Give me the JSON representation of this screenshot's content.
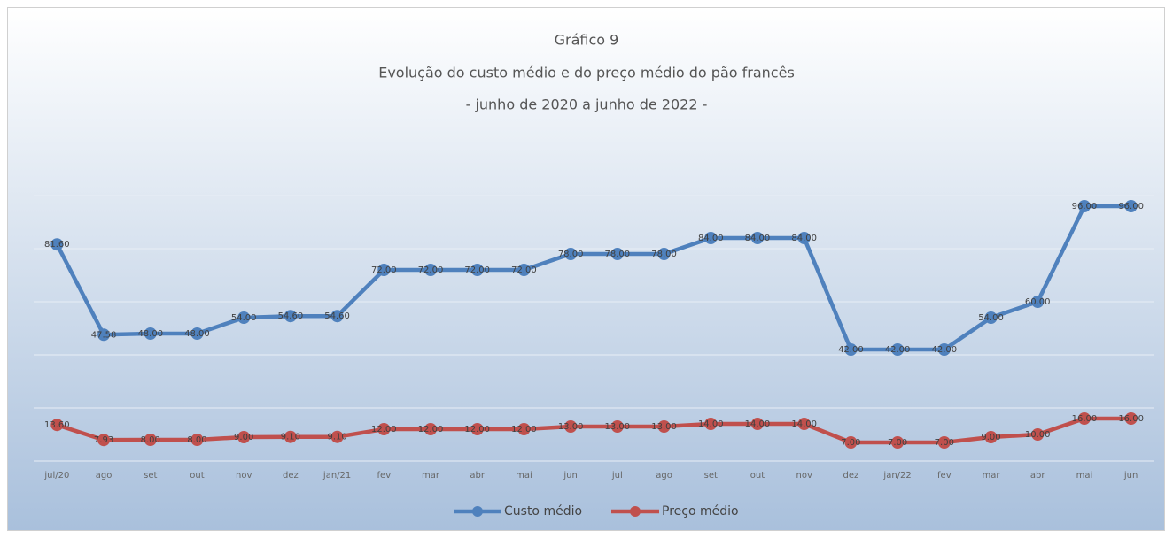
{
  "chart_data": {
    "type": "line",
    "title": [
      "Gráfico 9",
      "Evolução do custo médio e do preço médio do pão francês",
      "- junho de 2020 a junho de 2022 -"
    ],
    "categories": [
      "jul/20",
      "ago",
      "set",
      "out",
      "nov",
      "dez",
      "jan/21",
      "fev",
      "mar",
      "abr",
      "mai",
      "jun",
      "jul",
      "ago",
      "set",
      "out",
      "nov",
      "dez",
      "jan/22",
      "fev",
      "mar",
      "abr",
      "mai",
      "jun"
    ],
    "series": [
      {
        "name": "Custo médio",
        "color": "#4f81bd",
        "values": [
          81.6,
          47.58,
          48,
          48,
          54,
          54.6,
          54.6,
          72,
          72,
          72,
          72,
          78,
          78,
          78,
          84,
          84,
          84,
          42,
          42,
          42,
          54,
          60,
          96,
          96
        ],
        "value_labels": [
          "81.60",
          "47.58",
          "48.00",
          "48.00",
          "54.00",
          "54.60",
          "54.60",
          "72.00",
          "72.00",
          "72.00",
          "72.00",
          "78.00",
          "78.00",
          "78.00",
          "84.00",
          "84.00",
          "84.00",
          "42.00",
          "42.00",
          "42.00",
          "54.00",
          "60.00",
          "96.00",
          "96.00"
        ]
      },
      {
        "name": "Preço médio",
        "color": "#c0504d",
        "values": [
          13.6,
          7.93,
          8,
          8,
          9,
          9.1,
          9.1,
          12,
          12,
          12,
          12,
          13,
          13,
          13,
          14,
          14,
          14,
          7,
          7,
          7,
          9,
          10,
          16,
          16
        ],
        "value_labels": [
          "13.60",
          "7.93",
          "8.00",
          "8.00",
          "9.00",
          "9.10",
          "9.10",
          "12.00",
          "12.00",
          "12.00",
          "12.00",
          "13.00",
          "13.00",
          "13.00",
          "14.00",
          "14.00",
          "14.00",
          "7.00",
          "7.00",
          "7.00",
          "9.00",
          "10.00",
          "16.00",
          "16.00"
        ]
      }
    ],
    "ylim": [
      0,
      120
    ],
    "yticks": [
      0,
      20,
      40,
      60,
      80,
      100,
      120
    ],
    "grid": true,
    "legend": "bottom"
  }
}
